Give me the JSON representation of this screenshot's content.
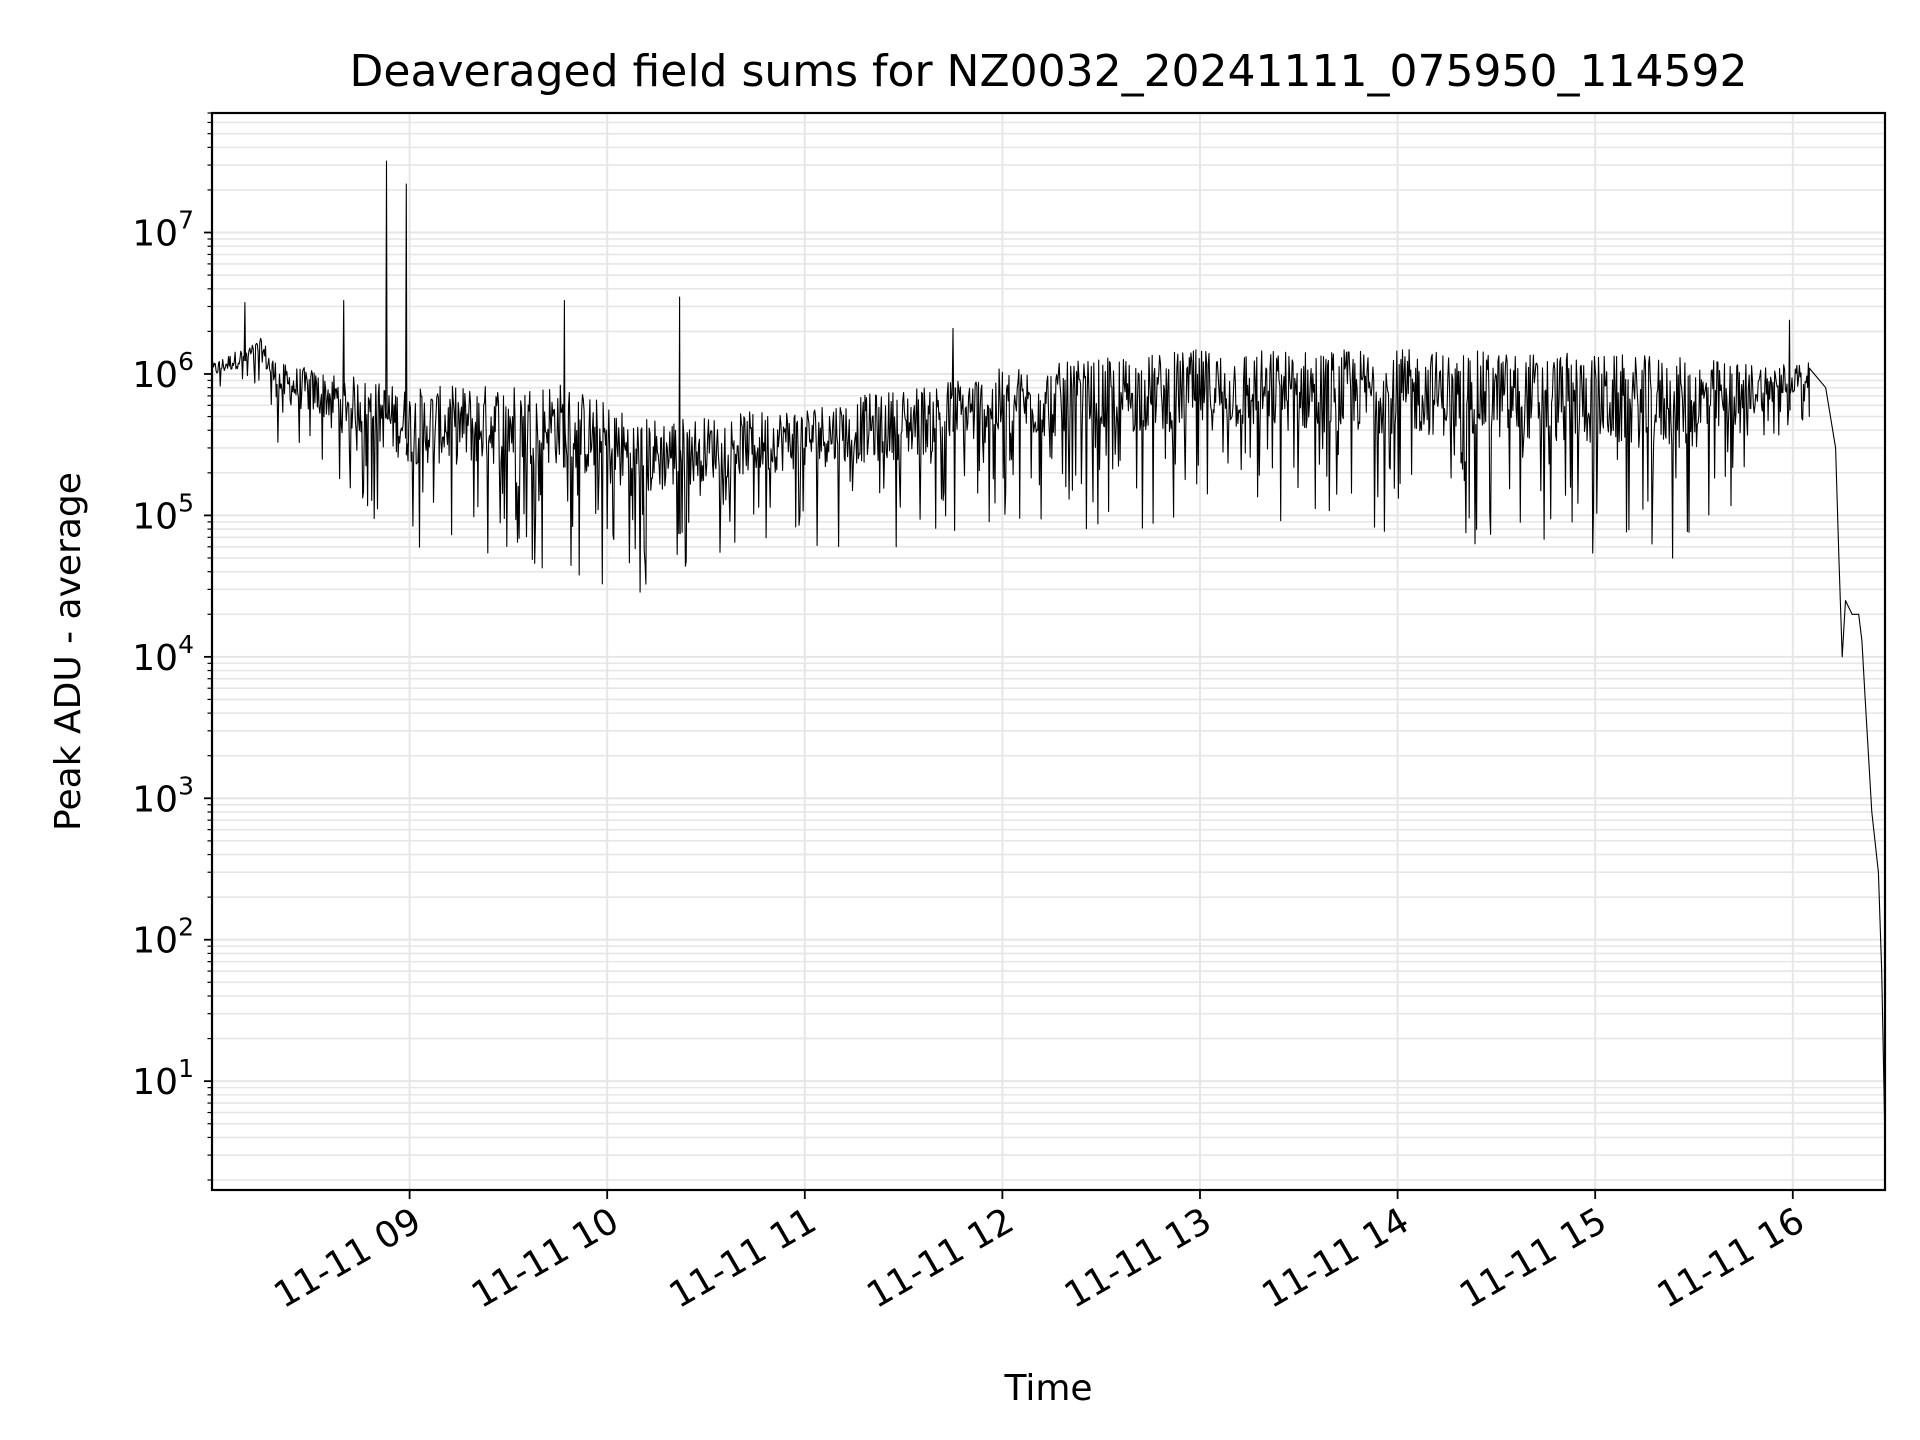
{
  "chart_data": {
    "type": "line",
    "title": "Deaveraged field sums for NZ0032_20241111_075950_114592",
    "xlabel": "Time",
    "ylabel": "Peak ADU - average",
    "y_scale": "log",
    "ylim": [
      1.7,
      70000000
    ],
    "xlim": [
      "2024-11-11 08:00",
      "2024-11-11 16:28"
    ],
    "x_ticks": [
      "11-11 09",
      "11-11 10",
      "11-11 11",
      "11-11 12",
      "11-11 13",
      "11-11 14",
      "11-11 15",
      "11-11 16"
    ],
    "y_ticks": [
      {
        "base": "10",
        "exp": "1"
      },
      {
        "base": "10",
        "exp": "2"
      },
      {
        "base": "10",
        "exp": "3"
      },
      {
        "base": "10",
        "exp": "4"
      },
      {
        "base": "10",
        "exp": "5"
      },
      {
        "base": "10",
        "exp": "6"
      },
      {
        "base": "10",
        "exp": "7"
      }
    ],
    "grid": true,
    "line_color": "#000000",
    "grid_color": "#e6e6e6",
    "envelope": [
      {
        "x": "2024-11-11 08:00",
        "low": 700000,
        "high": 1200000
      },
      {
        "x": "2024-11-11 08:15",
        "low": 800000,
        "high": 1800000
      },
      {
        "x": "2024-11-11 08:20",
        "low": 300000,
        "high": 1200000
      },
      {
        "x": "2024-11-11 08:40",
        "low": 150000,
        "high": 1000000
      },
      {
        "x": "2024-11-11 09:00",
        "low": 50000,
        "high": 800000
      },
      {
        "x": "2024-11-11 09:45",
        "low": 40000,
        "high": 900000
      },
      {
        "x": "2024-11-11 10:10",
        "low": 25000,
        "high": 500000
      },
      {
        "x": "2024-11-11 10:30",
        "low": 50000,
        "high": 500000
      },
      {
        "x": "2024-11-11 11:00",
        "low": 60000,
        "high": 600000
      },
      {
        "x": "2024-11-11 11:30",
        "low": 60000,
        "high": 800000
      },
      {
        "x": "2024-11-11 12:00",
        "low": 80000,
        "high": 1100000
      },
      {
        "x": "2024-11-11 13:00",
        "low": 80000,
        "high": 1500000
      },
      {
        "x": "2024-11-11 14:00",
        "low": 70000,
        "high": 1500000
      },
      {
        "x": "2024-11-11 15:00",
        "low": 50000,
        "high": 1400000
      },
      {
        "x": "2024-11-11 15:30",
        "low": 45000,
        "high": 1300000
      },
      {
        "x": "2024-11-11 15:50",
        "low": 200000,
        "high": 1200000
      },
      {
        "x": "2024-11-11 16:05",
        "low": 500000,
        "high": 1200000
      }
    ],
    "series": [
      {
        "values": [
          {
            "x": "2024-11-11 08:53",
            "y": 32000000
          },
          {
            "x": "2024-11-11 08:59",
            "y": 22000000
          },
          {
            "x": "2024-11-11 08:40",
            "y": 3300000
          },
          {
            "x": "2024-11-11 08:10",
            "y": 3200000
          },
          {
            "x": "2024-11-11 09:47",
            "y": 3300000
          },
          {
            "x": "2024-11-11 10:22",
            "y": 3500000
          },
          {
            "x": "2024-11-11 11:45",
            "y": 2100000
          },
          {
            "x": "2024-11-11 15:59",
            "y": 2400000
          },
          {
            "x": "2024-11-11 16:05",
            "y": 1100000
          },
          {
            "x": "2024-11-11 16:10",
            "y": 800000
          },
          {
            "x": "2024-11-11 16:13",
            "y": 300000
          },
          {
            "x": "2024-11-11 16:14",
            "y": 50000
          },
          {
            "x": "2024-11-11 16:15",
            "y": 10000
          },
          {
            "x": "2024-11-11 16:16",
            "y": 25000
          },
          {
            "x": "2024-11-11 16:18",
            "y": 20000
          },
          {
            "x": "2024-11-11 16:20",
            "y": 20000
          },
          {
            "x": "2024-11-11 16:21",
            "y": 13000
          },
          {
            "x": "2024-11-11 16:22",
            "y": 5000
          },
          {
            "x": "2024-11-11 16:24",
            "y": 800
          },
          {
            "x": "2024-11-11 16:26",
            "y": 300
          },
          {
            "x": "2024-11-11 16:27",
            "y": 60
          },
          {
            "x": "2024-11-11 16:28",
            "y": 3.7
          }
        ]
      }
    ]
  }
}
